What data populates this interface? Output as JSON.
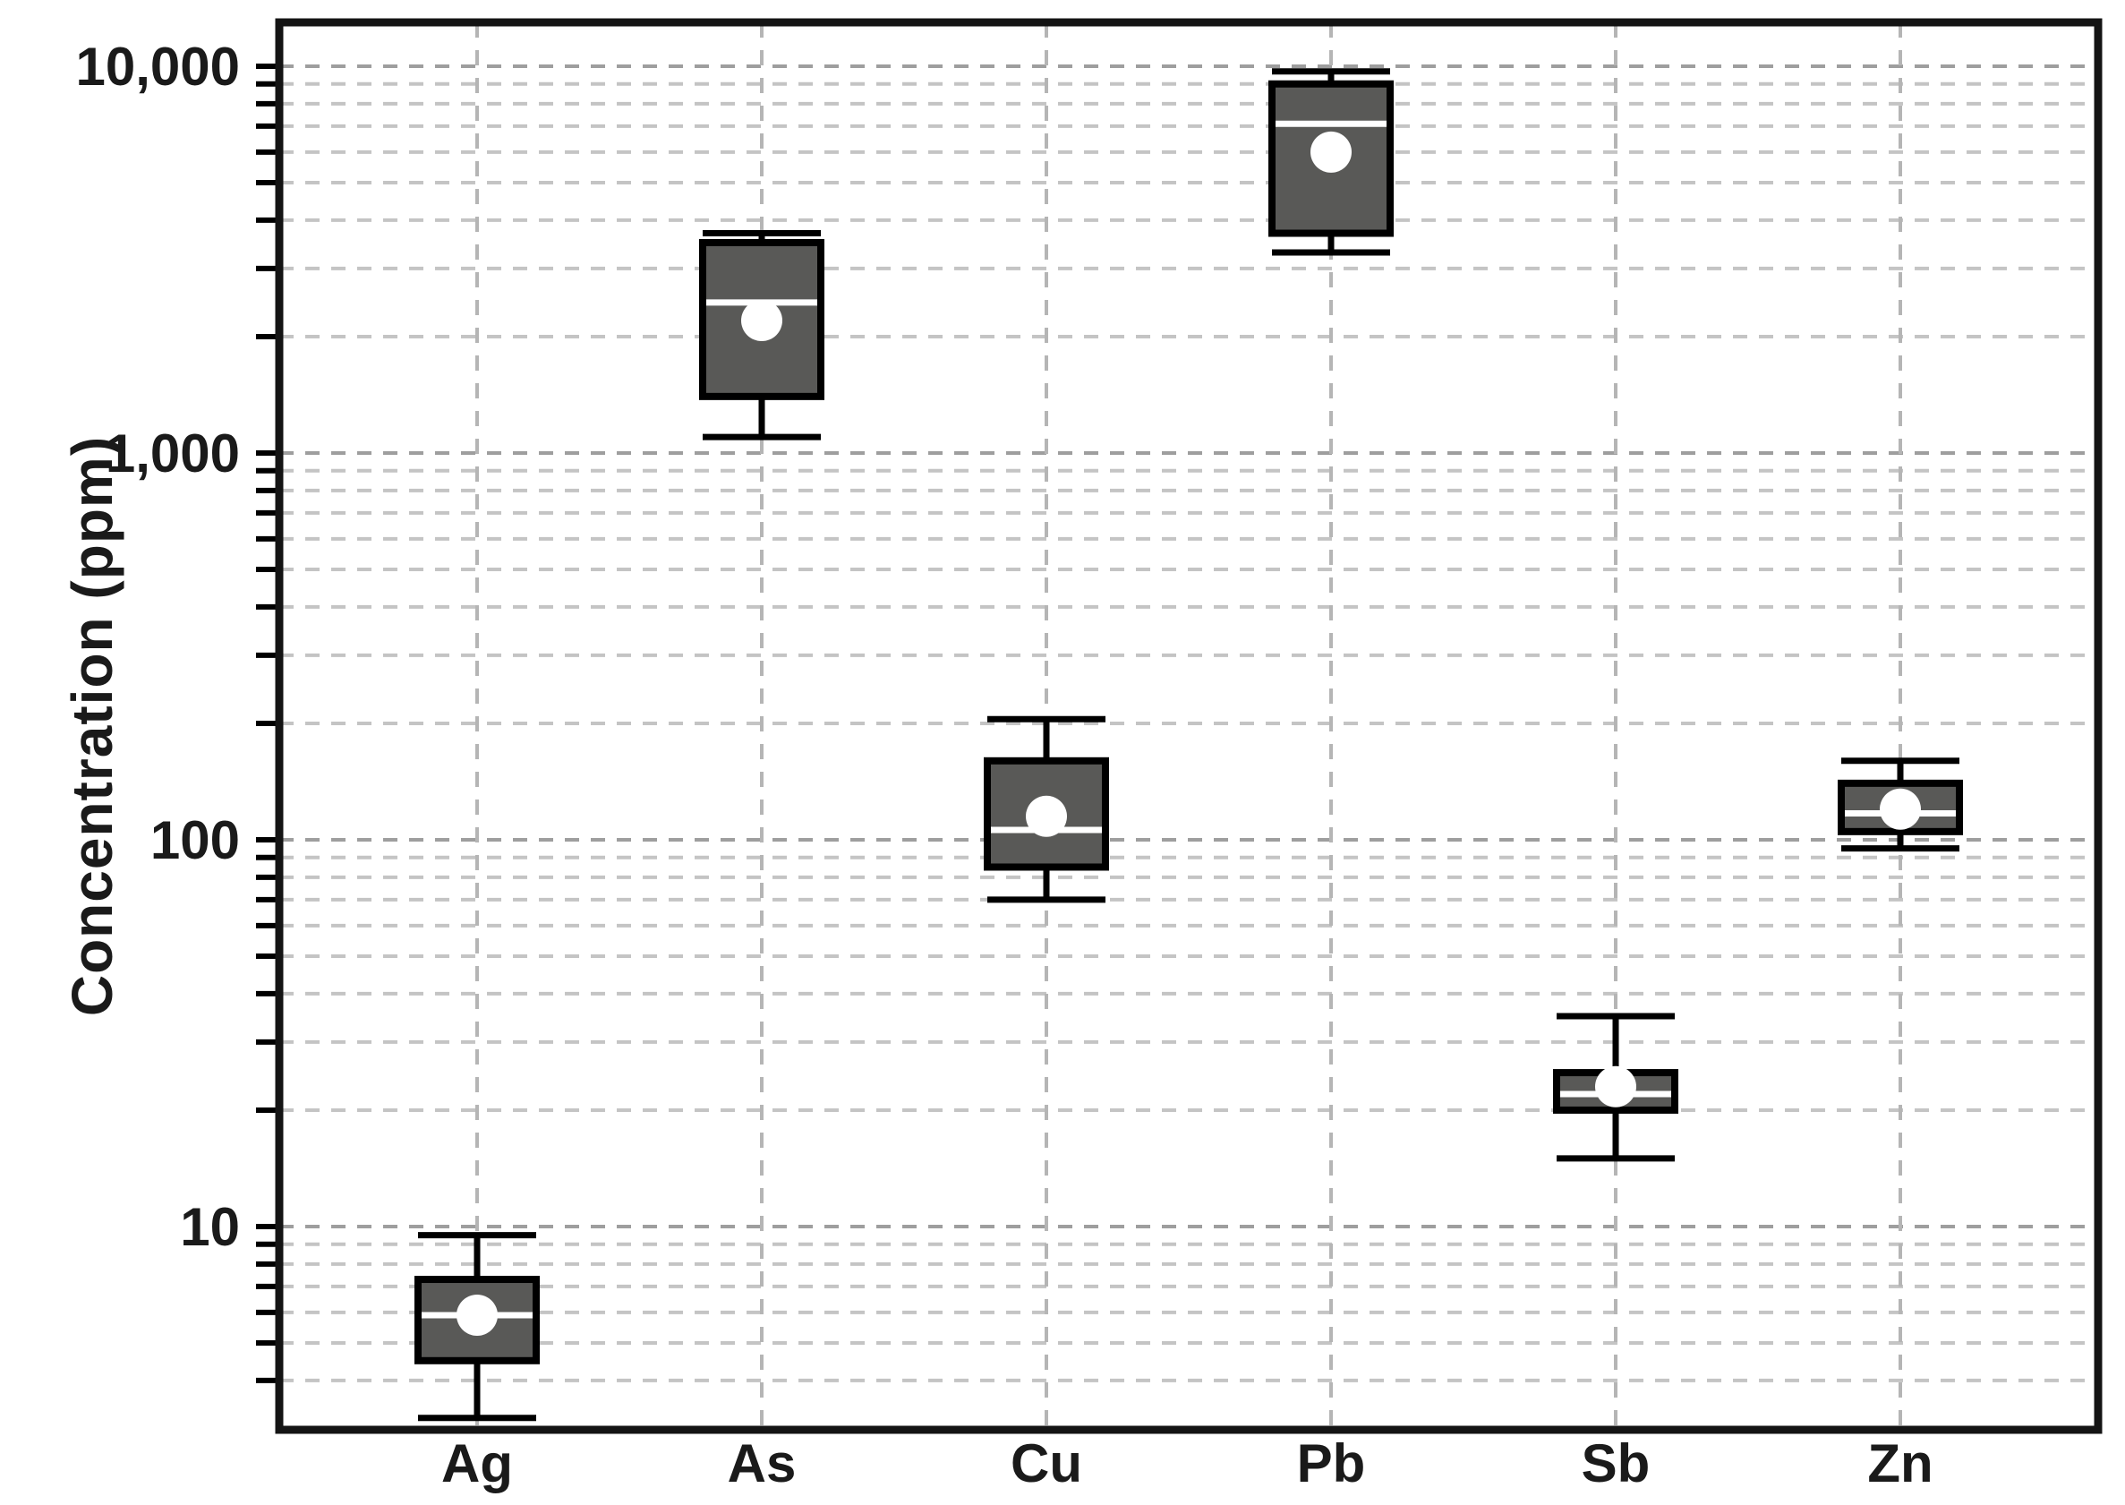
{
  "figure": {
    "ylabel": "Concentration (ppm)"
  },
  "chart_data": {
    "type": "box",
    "title": "",
    "xlabel": "",
    "ylabel": "Concentration (ppm)",
    "y_scale": "log",
    "ylim": [
      3,
      13000
    ],
    "y_axis_ticks": [
      {
        "label": "10,000",
        "value": 10000
      },
      {
        "label": "1,000",
        "value": 1000
      },
      {
        "label": "100",
        "value": 100
      },
      {
        "label": "10",
        "value": 10
      }
    ],
    "grid": {
      "horizontal": "dashed, log minor and major lines",
      "vertical": "dashed line at each category",
      "legend_position": "none"
    },
    "categories": [
      "Ag",
      "As",
      "Cu",
      "Pb",
      "Sb",
      "Zn"
    ],
    "series": [
      {
        "name": "Ag",
        "whisker_low": 3.2,
        "q1": 4.5,
        "median": 5.9,
        "mean": 5.9,
        "q3": 7.3,
        "whisker_high": 9.5
      },
      {
        "name": "As",
        "whisker_low": 1100,
        "q1": 1400,
        "median": 2450,
        "mean": 2200,
        "q3": 3500,
        "whisker_high": 3700
      },
      {
        "name": "Cu",
        "whisker_low": 70,
        "q1": 85,
        "median": 106,
        "mean": 115,
        "q3": 160,
        "whisker_high": 205
      },
      {
        "name": "Pb",
        "whisker_low": 3300,
        "q1": 3700,
        "median": 7100,
        "mean": 6000,
        "q3": 9000,
        "whisker_high": 9700
      },
      {
        "name": "Sb",
        "whisker_low": 15,
        "q1": 20,
        "median": 22,
        "mean": 23,
        "q3": 25,
        "whisker_high": 35
      },
      {
        "name": "Zn",
        "whisker_low": 95,
        "q1": 105,
        "median": 117,
        "mean": 120,
        "q3": 140,
        "whisker_high": 160
      }
    ],
    "median_marker": "white-line",
    "mean_marker": "white-circle",
    "colors": {
      "box_fill": "#595957",
      "box_stroke": "#000000",
      "whisker": "#000000",
      "median": "#ffffff",
      "mean_marker": "#ffffff",
      "grid_major": "#9e9e9e",
      "grid_minor": "#c4c4c4",
      "grid_vertical": "#b5b5b5",
      "axis": "#141414",
      "text": "#1a1a1a"
    }
  }
}
